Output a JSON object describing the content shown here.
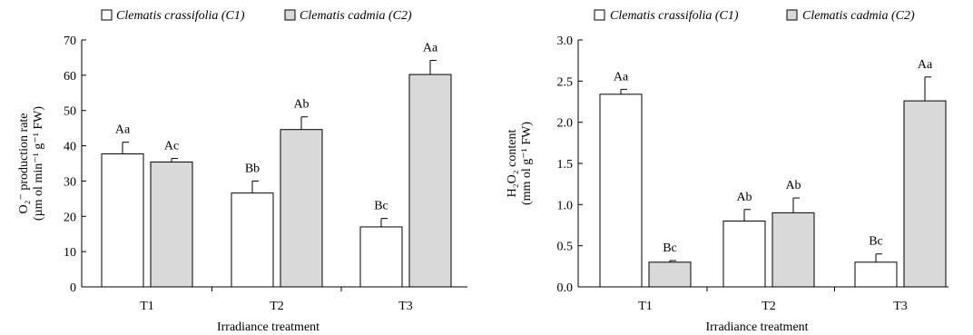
{
  "chart_data": [
    {
      "type": "bar",
      "title": "",
      "xlabel": "Irradiance treatment",
      "ylabel": "O2·- production rate (µmol min-1 g-1 FW)",
      "ylabel_lines": [
        "O₂⁻ production rate",
        "(µm ol min⁻¹ g⁻¹ FW)"
      ],
      "categories": [
        "T1",
        "T2",
        "T3"
      ],
      "ylim": [
        0,
        70
      ],
      "yticks": [
        0,
        10,
        20,
        30,
        40,
        50,
        60,
        70
      ],
      "ytick_labels": [
        "0",
        "10",
        "20",
        "30",
        "40",
        "50",
        "60",
        "70"
      ],
      "legend_position": "top",
      "grid": false,
      "series": [
        {
          "name": "Clematis crassifolia (C1)",
          "color": "#ffffff",
          "values": [
            37.7,
            26.6,
            17.0
          ],
          "errors": [
            3.3,
            3.4,
            2.4
          ],
          "labels": [
            "Aa",
            "Bb",
            "Bc"
          ]
        },
        {
          "name": "Clematis cadmia (C2)",
          "color": "#d9d9d9",
          "values": [
            35.4,
            44.6,
            60.2
          ],
          "errors": [
            1.0,
            3.6,
            4.0
          ],
          "labels": [
            "Ac",
            "Ab",
            "Aa"
          ]
        }
      ]
    },
    {
      "type": "bar",
      "title": "",
      "xlabel": "Irradiance treatment",
      "ylabel": "H2O2 content (mmol g-1 FW)",
      "ylabel_lines": [
        "H₂O₂ content",
        "(mm ol g⁻¹ FW)"
      ],
      "categories": [
        "T1",
        "T2",
        "T3"
      ],
      "ylim": [
        0,
        3.0
      ],
      "yticks": [
        0,
        0.5,
        1.0,
        1.5,
        2.0,
        2.5,
        3.0
      ],
      "ytick_labels": [
        "0.0",
        "0.5",
        "1.0",
        "1.5",
        "2.0",
        "2.5",
        "3.0"
      ],
      "legend_position": "top",
      "grid": false,
      "series": [
        {
          "name": "Clematis crassifolia (C1)",
          "color": "#ffffff",
          "values": [
            2.34,
            0.8,
            0.3
          ],
          "errors": [
            0.06,
            0.14,
            0.1
          ],
          "labels": [
            "Aa",
            "Ab",
            "Bc"
          ]
        },
        {
          "name": "Clematis cadmia (C2)",
          "color": "#d9d9d9",
          "values": [
            0.3,
            0.9,
            2.26
          ],
          "errors": [
            0.02,
            0.18,
            0.29
          ],
          "labels": [
            "Bc",
            "Ab",
            "Aa"
          ]
        }
      ]
    }
  ]
}
